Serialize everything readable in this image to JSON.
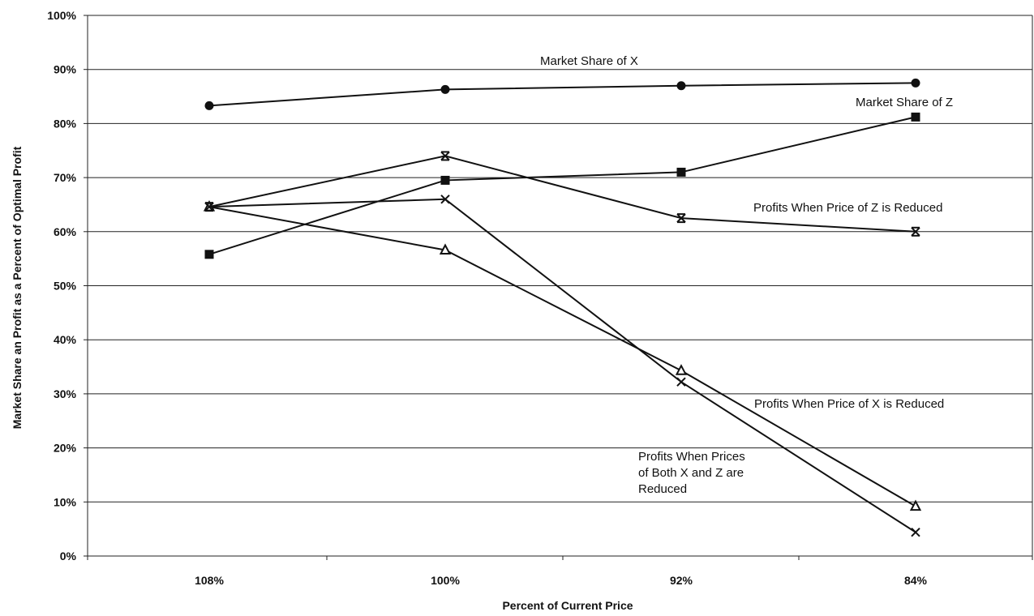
{
  "chart_data": {
    "type": "line",
    "title": "",
    "xlabel": "Percent of Current Price",
    "ylabel": "Market Share an Profit as a Percent of Optimal Profit",
    "categories": [
      "108%",
      "100%",
      "92%",
      "84%"
    ],
    "ylim": [
      0,
      100
    ],
    "yticks": [
      "0%",
      "10%",
      "20%",
      "30%",
      "40%",
      "50%",
      "60%",
      "70%",
      "80%",
      "90%",
      "100%"
    ],
    "grid": true,
    "series": [
      {
        "name": "Market Share of X",
        "marker": "diamond",
        "values": [
          83.3,
          86.3,
          87.0,
          87.5
        ]
      },
      {
        "name": "Market Share of Z",
        "marker": "square",
        "values": [
          55.8,
          69.5,
          71.0,
          81.2
        ]
      },
      {
        "name": "Profits When Price of Z is Reduced",
        "marker": "star",
        "values": [
          64.6,
          74.0,
          62.5,
          60.0
        ]
      },
      {
        "name": "Profits When Price of X is Reduced",
        "marker": "triangle",
        "values": [
          64.6,
          56.6,
          34.3,
          9.2
        ]
      },
      {
        "name": "Profits When Prices of Both X and Z are Reduced",
        "marker": "x",
        "values": [
          64.6,
          66.0,
          32.2,
          4.4
        ]
      }
    ],
    "annotations": [
      {
        "series": 0,
        "lines": [
          "Market Share of X"
        ]
      },
      {
        "series": 1,
        "lines": [
          "Market Share of Z"
        ]
      },
      {
        "series": 2,
        "lines": [
          "Profits When Price of Z is Reduced"
        ]
      },
      {
        "series": 3,
        "lines": [
          "Profits When Price of X is Reduced"
        ]
      },
      {
        "series": 4,
        "lines": [
          "Profits When Prices",
          "of Both X and Z are",
          "Reduced"
        ]
      }
    ]
  }
}
